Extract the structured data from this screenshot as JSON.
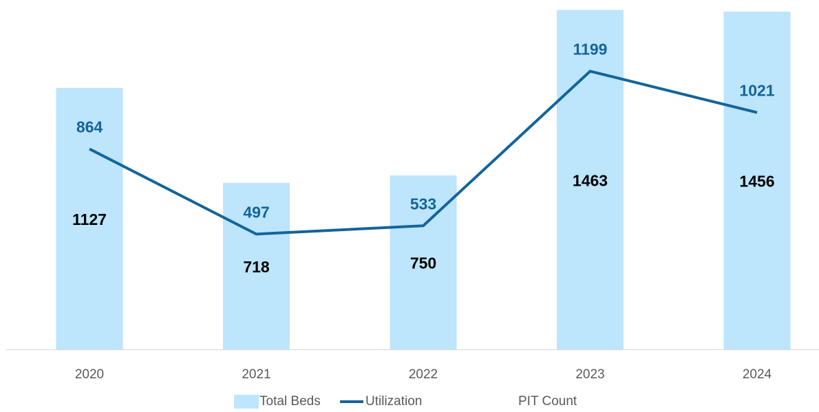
{
  "chart_data": {
    "type": "bar-line",
    "categories": [
      "2020",
      "2021",
      "2022",
      "2023",
      "2024"
    ],
    "series": [
      {
        "name": "Total Beds",
        "type": "bar",
        "color": "#bde5fc",
        "values": [
          1127,
          718,
          750,
          1463,
          1456
        ]
      },
      {
        "name": "Utilization",
        "type": "line",
        "color": "#14649a",
        "values": [
          864,
          497,
          533,
          1199,
          1021
        ]
      },
      {
        "name": "PIT Count",
        "type": "line",
        "color": "#ffffff",
        "values": [
          null,
          null,
          null,
          null,
          null
        ]
      }
    ],
    "ylim": [
      0,
      1500
    ],
    "grid": false,
    "legend": "bottom"
  }
}
